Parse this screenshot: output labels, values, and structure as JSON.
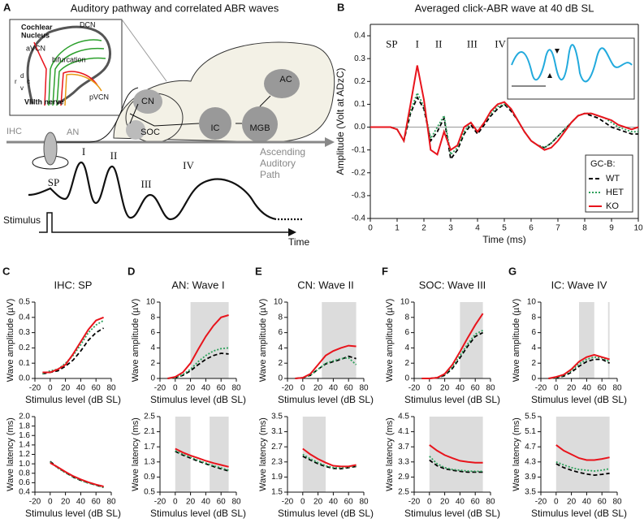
{
  "diagram": {
    "panel": "A",
    "title": "Auditory pathway and correlated ABR waves",
    "inset_title": [
      "Cochlear",
      "Nucleus"
    ],
    "dcn": "DCN",
    "avcn": "aVCN",
    "bifurcation": "bifurcation",
    "pvcn": "pVCN",
    "nerve": "VIIIth nerve",
    "dir_d": "d",
    "dir_r": "r",
    "dir_c": "c",
    "dir_v": "v",
    "cn": "CN",
    "ac": "AC",
    "soc": "SOC",
    "ic": "IC",
    "mgb": "MGB",
    "ihc": "IHC",
    "an": "AN",
    "waves": [
      "SP",
      "I",
      "II",
      "III",
      "IV"
    ],
    "stimulus": "Stimulus",
    "time": "Time",
    "path": [
      "Ascending",
      "Auditory",
      "Path"
    ]
  },
  "chart_data": [
    {
      "type": "line",
      "panel": "B",
      "title": "Averaged click-ABR wave at 40 dB SL",
      "xlabel": "Time (ms)",
      "ylabel": "Amplitude (Volt at ADzC)",
      "annotations": [
        "SP",
        "I",
        "II",
        "III",
        "IV"
      ],
      "legend_title": "GC-B:",
      "legend": "lower right",
      "xlim": [
        0,
        10
      ],
      "xticks": [
        0,
        1,
        2,
        3,
        4,
        5,
        6,
        7,
        8,
        9,
        10
      ],
      "ylim": [
        -0.4,
        0.45
      ],
      "yticks": [
        -0.4,
        -0.3,
        -0.2,
        -0.1,
        {
          "value": 0,
          "label": "0.0"
        },
        0.1,
        0.2,
        0.3,
        0.4
      ],
      "x": [
        0,
        0.25,
        0.5,
        0.75,
        1,
        1.25,
        1.5,
        1.75,
        2,
        2.25,
        2.5,
        2.75,
        3,
        3.25,
        3.5,
        3.75,
        4,
        4.25,
        4.5,
        4.75,
        5,
        5.25,
        5.5,
        5.75,
        6,
        6.25,
        6.5,
        6.75,
        7,
        7.25,
        7.5,
        7.75,
        8,
        8.25,
        8.5,
        8.75,
        9,
        9.25,
        9.5,
        9.75,
        10
      ],
      "series": [
        {
          "name": "WT",
          "color": "#000000",
          "style": "dashed",
          "values": [
            0,
            0,
            0,
            0,
            -0.01,
            -0.06,
            0.06,
            0.13,
            0.08,
            -0.06,
            -0.02,
            0.04,
            -0.14,
            -0.1,
            -0.03,
            0.01,
            -0.03,
            0.01,
            0.05,
            0.08,
            0.1,
            0.07,
            0.03,
            -0.02,
            -0.06,
            -0.08,
            -0.09,
            -0.07,
            -0.04,
            -0.01,
            0.02,
            0.05,
            0.06,
            0.05,
            0.04,
            0.02,
            0,
            -0.01,
            -0.02,
            -0.03,
            -0.03
          ]
        },
        {
          "name": "HET",
          "color": "#2ca05a",
          "style": "dotted",
          "values": [
            0,
            0,
            0,
            0,
            -0.01,
            -0.06,
            0.07,
            0.15,
            0.09,
            -0.05,
            0,
            0.05,
            -0.12,
            -0.09,
            -0.02,
            0.02,
            -0.02,
            0.02,
            0.06,
            0.09,
            0.1,
            0.08,
            0.03,
            -0.02,
            -0.06,
            -0.08,
            -0.09,
            -0.07,
            -0.04,
            -0.01,
            0.02,
            0.05,
            0.06,
            0.06,
            0.05,
            0.04,
            0.02,
            0,
            -0.01,
            -0.02,
            -0.02
          ]
        },
        {
          "name": "KO",
          "color": "#e8141c",
          "style": "solid",
          "values": [
            0,
            0,
            0,
            0,
            -0.01,
            -0.06,
            0.1,
            0.27,
            0.12,
            -0.1,
            -0.12,
            -0.02,
            -0.1,
            -0.08,
            0,
            0.02,
            -0.02,
            0.02,
            0.07,
            0.1,
            0.11,
            0.08,
            0.03,
            -0.02,
            -0.06,
            -0.08,
            -0.1,
            -0.09,
            -0.06,
            -0.02,
            0.02,
            0.05,
            0.06,
            0.06,
            0.05,
            0.04,
            0.03,
            0.01,
            0,
            -0.01,
            0
          ]
        }
      ]
    },
    {
      "type": "line",
      "panel": "C",
      "title": "IHC: SP",
      "xlabel": "Stimulus level (dB SL)",
      "ylabel": "Wave amplitude (µV)",
      "xlim": [
        -20,
        80
      ],
      "xticks": [
        -20,
        0,
        20,
        40,
        60,
        80
      ],
      "ylim": [
        0,
        0.5
      ],
      "yticks": [
        {
          "value": 0,
          "label": "0.0"
        },
        0.1,
        0.2,
        0.3,
        0.4,
        0.5
      ],
      "shaded": [],
      "x": [
        -10,
        0,
        10,
        20,
        30,
        40,
        50,
        60,
        70
      ],
      "series": [
        {
          "color": "#000000",
          "style": "dashed",
          "values": [
            0.03,
            0.04,
            0.05,
            0.08,
            0.12,
            0.18,
            0.25,
            0.3,
            0.33
          ]
        },
        {
          "color": "#2ca05a",
          "style": "dotted",
          "values": [
            0.03,
            0.05,
            0.06,
            0.1,
            0.15,
            0.22,
            0.3,
            0.35,
            0.38
          ]
        },
        {
          "color": "#e8141c",
          "style": "solid",
          "values": [
            0.04,
            0.04,
            0.06,
            0.09,
            0.16,
            0.24,
            0.32,
            0.38,
            0.4
          ]
        }
      ]
    },
    {
      "type": "line",
      "xlabel": "Stimulus level (dB SL)",
      "ylabel": "Wave latency (ms)",
      "xlim": [
        -20,
        80
      ],
      "xticks": [
        -20,
        0,
        20,
        40,
        60,
        80
      ],
      "ylim": [
        0.4,
        2.0
      ],
      "yticks": [
        0.4,
        0.6,
        0.8,
        {
          "value": 1.0,
          "label": "1.0"
        },
        1.2,
        1.4,
        1.6,
        1.8,
        {
          "value": 2.0,
          "label": "2.0"
        }
      ],
      "shaded": [],
      "x": [
        0,
        10,
        20,
        30,
        40,
        50,
        60,
        70
      ],
      "series": [
        {
          "color": "#000000",
          "style": "dashed",
          "values": [
            1.05,
            0.92,
            0.82,
            0.72,
            0.65,
            0.6,
            0.55,
            0.5
          ]
        },
        {
          "color": "#2ca05a",
          "style": "dotted",
          "values": [
            1.04,
            0.91,
            0.81,
            0.72,
            0.65,
            0.59,
            0.55,
            0.5
          ]
        },
        {
          "color": "#e8141c",
          "style": "solid",
          "values": [
            1.02,
            0.93,
            0.83,
            0.74,
            0.67,
            0.61,
            0.56,
            0.52
          ]
        }
      ]
    },
    {
      "type": "line",
      "panel": "D",
      "title": "AN: Wave I",
      "xlabel": "Stimulus level (dB SL)",
      "ylabel": "Wave amplitude (µV)",
      "xlim": [
        -20,
        80
      ],
      "xticks": [
        -20,
        0,
        20,
        40,
        60,
        80
      ],
      "ylim": [
        0,
        10
      ],
      "yticks": [
        0,
        2,
        4,
        6,
        8,
        10
      ],
      "shaded": [
        [
          20,
          70
        ]
      ],
      "x": [
        -10,
        0,
        10,
        20,
        30,
        40,
        50,
        60,
        70
      ],
      "series": [
        {
          "color": "#000000",
          "style": "dashed",
          "values": [
            0,
            0.1,
            0.4,
            1.0,
            1.8,
            2.5,
            3.0,
            3.3,
            3.2
          ]
        },
        {
          "color": "#2ca05a",
          "style": "dotted",
          "values": [
            0,
            0.1,
            0.5,
            1.2,
            2.2,
            3.0,
            3.6,
            3.9,
            4.0
          ]
        },
        {
          "color": "#e8141c",
          "style": "solid",
          "values": [
            0,
            0.2,
            0.8,
            2.0,
            3.8,
            5.5,
            6.9,
            8.0,
            8.3
          ]
        }
      ]
    },
    {
      "type": "line",
      "xlabel": "Stimulus level (dB SL)",
      "ylabel": "Wave latency (ms)",
      "xlim": [
        -20,
        80
      ],
      "xticks": [
        -20,
        0,
        20,
        40,
        60,
        80
      ],
      "ylim": [
        0.5,
        2.5
      ],
      "yticks": [
        0.5,
        0.9,
        1.3,
        1.7,
        2.1,
        2.5
      ],
      "shaded": [
        [
          0,
          20
        ],
        [
          45,
          70
        ]
      ],
      "x": [
        0,
        10,
        20,
        30,
        40,
        50,
        60,
        70
      ],
      "series": [
        {
          "color": "#000000",
          "style": "dashed",
          "values": [
            1.58,
            1.48,
            1.4,
            1.32,
            1.25,
            1.18,
            1.12,
            1.06
          ]
        },
        {
          "color": "#2ca05a",
          "style": "dotted",
          "values": [
            1.6,
            1.5,
            1.42,
            1.34,
            1.27,
            1.2,
            1.14,
            1.08
          ]
        },
        {
          "color": "#e8141c",
          "style": "solid",
          "values": [
            1.65,
            1.55,
            1.47,
            1.4,
            1.33,
            1.27,
            1.22,
            1.17
          ]
        }
      ]
    },
    {
      "type": "line",
      "panel": "E",
      "title": "CN: Wave II",
      "xlabel": "Stimulus level (dB SL)",
      "ylabel": "Wave amplitude (µV)",
      "xlim": [
        -20,
        80
      ],
      "xticks": [
        -20,
        0,
        20,
        40,
        60,
        80
      ],
      "ylim": [
        0,
        10
      ],
      "yticks": [
        0,
        2,
        4,
        6,
        8,
        10
      ],
      "shaded": [
        [
          25,
          70
        ]
      ],
      "x": [
        -10,
        0,
        10,
        20,
        30,
        40,
        50,
        60,
        70
      ],
      "series": [
        {
          "color": "#000000",
          "style": "dashed",
          "values": [
            0,
            0.1,
            0.4,
            1.2,
            1.9,
            2.2,
            2.5,
            2.9,
            2.6
          ]
        },
        {
          "color": "#2ca05a",
          "style": "dotted",
          "values": [
            0,
            0.1,
            0.4,
            1.2,
            2.0,
            2.3,
            2.6,
            2.7,
            1.8
          ]
        },
        {
          "color": "#e8141c",
          "style": "solid",
          "values": [
            0,
            0.1,
            0.6,
            1.8,
            3.0,
            3.6,
            4.0,
            4.3,
            4.2
          ]
        }
      ]
    },
    {
      "type": "line",
      "xlabel": "Stimulus level (dB SL)",
      "ylabel": "Wave latency (ms)",
      "xlim": [
        -20,
        80
      ],
      "xticks": [
        -20,
        0,
        20,
        40,
        60,
        80
      ],
      "ylim": [
        1.5,
        3.5
      ],
      "yticks": [
        1.5,
        1.9,
        2.3,
        2.7,
        3.1,
        3.5
      ],
      "shaded": [
        [
          0,
          30
        ]
      ],
      "x": [
        0,
        10,
        20,
        30,
        40,
        50,
        60,
        70
      ],
      "series": [
        {
          "color": "#000000",
          "style": "dashed",
          "values": [
            2.45,
            2.35,
            2.25,
            2.18,
            2.13,
            2.12,
            2.15,
            2.18
          ]
        },
        {
          "color": "#2ca05a",
          "style": "dotted",
          "values": [
            2.5,
            2.38,
            2.28,
            2.2,
            2.15,
            2.14,
            2.16,
            2.2
          ]
        },
        {
          "color": "#e8141c",
          "style": "solid",
          "values": [
            2.65,
            2.5,
            2.38,
            2.28,
            2.2,
            2.18,
            2.18,
            2.22
          ]
        }
      ]
    },
    {
      "type": "line",
      "panel": "F",
      "title": "SOC: Wave III",
      "xlabel": "Stimulus level (dB SL)",
      "ylabel": "Wave amplitude (µV)",
      "xlim": [
        -20,
        80
      ],
      "xticks": [
        -20,
        0,
        20,
        40,
        60,
        80
      ],
      "ylim": [
        0,
        10
      ],
      "yticks": [
        0,
        2,
        4,
        6,
        8,
        10
      ],
      "shaded": [
        [
          40,
          70
        ]
      ],
      "x": [
        -10,
        0,
        10,
        20,
        30,
        40,
        50,
        60,
        70
      ],
      "series": [
        {
          "color": "#000000",
          "style": "dashed",
          "values": [
            0,
            0,
            0.1,
            0.4,
            1.3,
            2.7,
            4.2,
            5.5,
            6.0
          ]
        },
        {
          "color": "#2ca05a",
          "style": "dotted",
          "values": [
            0,
            0,
            0.1,
            0.5,
            1.5,
            3.0,
            4.5,
            5.8,
            6.3
          ]
        },
        {
          "color": "#e8141c",
          "style": "solid",
          "values": [
            0,
            0,
            0.1,
            0.6,
            1.8,
            3.5,
            5.3,
            7.0,
            8.5
          ]
        }
      ]
    },
    {
      "type": "line",
      "xlabel": "Stimulus level (dB SL)",
      "ylabel": "Wave latency (ms)",
      "xlim": [
        -20,
        80
      ],
      "xticks": [
        -20,
        0,
        20,
        40,
        60,
        80
      ],
      "ylim": [
        2.5,
        4.5
      ],
      "yticks": [
        2.5,
        2.9,
        3.3,
        3.7,
        4.1,
        4.5
      ],
      "shaded": [
        [
          0,
          70
        ]
      ],
      "x": [
        0,
        10,
        20,
        30,
        40,
        50,
        60,
        70
      ],
      "series": [
        {
          "color": "#000000",
          "style": "dashed",
          "values": [
            3.35,
            3.2,
            3.12,
            3.08,
            3.05,
            3.03,
            3.03,
            3.03
          ]
        },
        {
          "color": "#2ca05a",
          "style": "dotted",
          "values": [
            3.45,
            3.25,
            3.15,
            3.1,
            3.08,
            3.06,
            3.05,
            3.05
          ]
        },
        {
          "color": "#e8141c",
          "style": "solid",
          "values": [
            3.75,
            3.6,
            3.48,
            3.4,
            3.33,
            3.3,
            3.28,
            3.28
          ]
        }
      ]
    },
    {
      "type": "line",
      "panel": "G",
      "title": "IC: Wave IV",
      "xlabel": "Stimulus level (dB SL)",
      "ylabel": "Wave amplitude (µV)",
      "xlim": [
        -20,
        80
      ],
      "xticks": [
        -20,
        0,
        20,
        40,
        60,
        80
      ],
      "ylim": [
        0,
        10
      ],
      "yticks": [
        0,
        2,
        4,
        6,
        8,
        10
      ],
      "shaded": [
        [
          30,
          50
        ],
        [
          68,
          70
        ]
      ],
      "x": [
        -10,
        0,
        10,
        20,
        30,
        40,
        50,
        60,
        70
      ],
      "series": [
        {
          "color": "#000000",
          "style": "dashed",
          "values": [
            0,
            0.1,
            0.3,
            0.8,
            1.6,
            2.2,
            2.5,
            2.5,
            2.0
          ]
        },
        {
          "color": "#2ca05a",
          "style": "dotted",
          "values": [
            0,
            0.1,
            0.4,
            1.0,
            1.9,
            2.5,
            2.8,
            2.7,
            2.2
          ]
        },
        {
          "color": "#e8141c",
          "style": "solid",
          "values": [
            0,
            0.2,
            0.5,
            1.2,
            2.2,
            2.8,
            3.1,
            2.8,
            2.5
          ]
        }
      ]
    },
    {
      "type": "line",
      "xlabel": "Stimulus level (dB SL)",
      "ylabel": "Wave latency (ms)",
      "xlim": [
        -20,
        80
      ],
      "xticks": [
        -20,
        0,
        20,
        40,
        60,
        80
      ],
      "ylim": [
        3.5,
        5.5
      ],
      "yticks": [
        3.5,
        3.9,
        4.3,
        4.7,
        5.1,
        5.5
      ],
      "shaded": [
        [
          0,
          70
        ]
      ],
      "x": [
        0,
        10,
        20,
        30,
        40,
        50,
        60,
        70
      ],
      "series": [
        {
          "color": "#000000",
          "style": "dashed",
          "values": [
            4.25,
            4.15,
            4.08,
            4.02,
            3.98,
            3.95,
            3.97,
            4.0
          ]
        },
        {
          "color": "#2ca05a",
          "style": "dotted",
          "values": [
            4.3,
            4.22,
            4.15,
            4.1,
            4.08,
            4.06,
            4.08,
            4.12
          ]
        },
        {
          "color": "#e8141c",
          "style": "solid",
          "values": [
            4.75,
            4.6,
            4.5,
            4.4,
            4.35,
            4.35,
            4.38,
            4.42
          ]
        }
      ]
    }
  ]
}
